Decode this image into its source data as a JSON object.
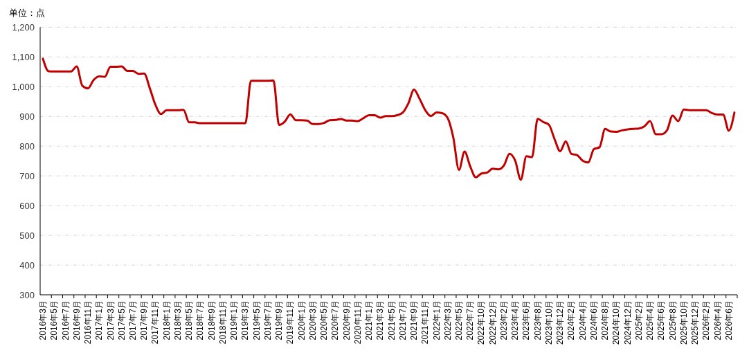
{
  "chart_data": {
    "type": "line",
    "ylabel": "单位：点",
    "categories": [
      "2016年3月",
      null,
      "2016年5月",
      null,
      "2016年7月",
      null,
      "2016年9月",
      null,
      "2016年11月",
      null,
      "2017年1月",
      null,
      "2017年3月",
      null,
      "2017年5月",
      null,
      "2017年7月",
      null,
      "2017年9月",
      null,
      "2017年11月",
      null,
      "2018年1月",
      null,
      "2018年3月",
      null,
      "2018年5月",
      null,
      "2018年7月",
      null,
      "2018年9月",
      null,
      "2018年11月",
      null,
      "2019年1月",
      null,
      "2019年3月",
      null,
      "2019年5月",
      null,
      "2019年7月",
      null,
      "2019年9月",
      null,
      "2019年11月",
      null,
      "2020年1月",
      null,
      "2020年3月",
      null,
      "2020年5月",
      null,
      "2020年7月",
      null,
      "2020年9月",
      null,
      "2020年11月",
      null,
      "2021年1月",
      null,
      "2021年3月",
      null,
      "2021年5月",
      null,
      "2021年7月",
      null,
      "2021年9月",
      null,
      "2021年11月",
      null,
      "2022年1月",
      null,
      "2022年3月",
      null,
      "2022年5月",
      null,
      "2022年7月",
      null,
      "2022年10月",
      null,
      "2022年12月",
      null,
      "2023年2月",
      null,
      "2023年4月",
      null,
      "2023年6月",
      null,
      "2023年8月",
      null,
      "2023年10月",
      null,
      "2023年12月",
      null,
      "2024年2月",
      null,
      "2024年4月",
      null,
      "2024年6月",
      null,
      "2024年8月",
      null,
      "2024年10月",
      null,
      "2024年12月",
      null,
      "2025年2月",
      null,
      "2025年4月",
      null,
      "2025年6月",
      null,
      "2025年8月",
      null,
      "2025年10月",
      null,
      "2025年12月",
      null,
      "2026年2月",
      null,
      "2026年4月",
      null,
      "2026年6月",
      null
    ],
    "series": [
      {
        "color": "#c00000",
        "values": [
          1094,
          1052,
          1051,
          1051,
          1051,
          1051,
          1068,
          1003,
          994,
          1022,
          1035,
          1033,
          1067,
          1067,
          1068,
          1053,
          1053,
          1043,
          1044,
          995,
          939,
          908,
          921,
          921,
          921,
          922,
          880,
          880,
          877,
          877,
          877,
          877,
          877,
          877,
          877,
          877,
          877,
          1020,
          1020,
          1020,
          1020,
          1021,
          871,
          882,
          907,
          887,
          887,
          886,
          874,
          874,
          878,
          887,
          888,
          891,
          886,
          886,
          884,
          894,
          904,
          904,
          896,
          901,
          901,
          904,
          913,
          944,
          990,
          959,
          921,
          901,
          913,
          911,
          894,
          828,
          720,
          782,
          732,
          695,
          708,
          711,
          724,
          722,
          735,
          774,
          751,
          687,
          766,
          763,
          892,
          881,
          872,
          824,
          783,
          816,
          774,
          770,
          751,
          745,
          790,
          796,
          858,
          849,
          848,
          853,
          856,
          858,
          859,
          867,
          884,
          840,
          840,
          853,
          903,
          884,
          923,
          921,
          921,
          921,
          921,
          911,
          906,
          906,
          852,
          913
        ]
      }
    ],
    "ylim": [
      300,
      1200
    ],
    "yticks": [
      300,
      400,
      500,
      600,
      700,
      800,
      900,
      {
        "value": 1000,
        "label": "1,000"
      },
      {
        "value": 1100,
        "label": "1,100"
      },
      {
        "value": 1200,
        "label": "1,200"
      }
    ],
    "grid": "y"
  }
}
